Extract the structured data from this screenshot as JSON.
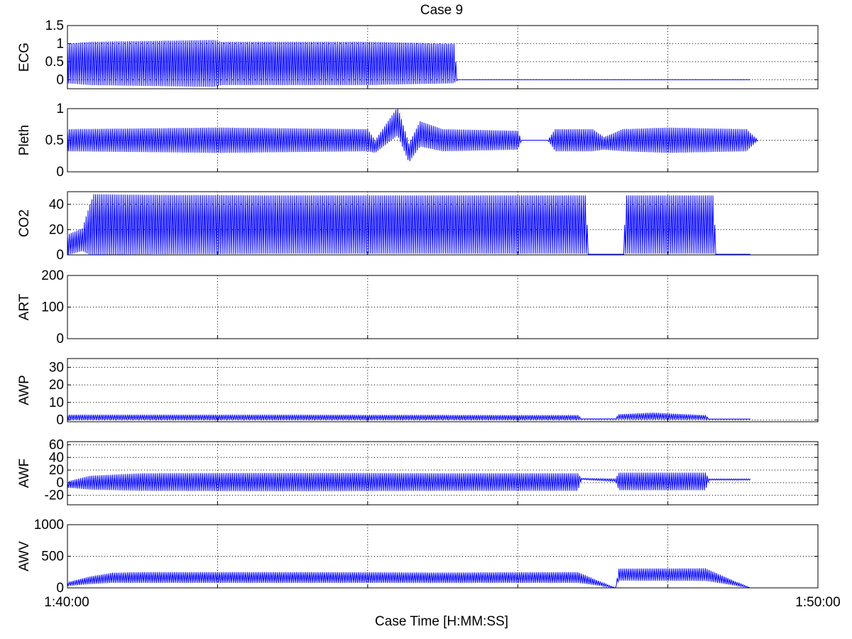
{
  "chart_data": {
    "type": "line",
    "title": "Case 9",
    "xlabel": "Case Time [H:MM:SS]",
    "xlim": [
      "1:40:00",
      "1:50:00"
    ],
    "x_tick_labels": [
      "1:40:00",
      "1:50:00"
    ],
    "x_grid_minutes": [
      0,
      2,
      4,
      6,
      8,
      10
    ],
    "grid": true,
    "line_color": "#0000ff",
    "panels": [
      {
        "ylabel": "ECG",
        "ylim": [
          -0.25,
          1.5
        ],
        "yticks": [
          0,
          0.5,
          1,
          1.5
        ],
        "ytick_labels": [
          "0",
          "0.5",
          "1",
          "1.5"
        ],
        "series": [
          {
            "x_min": [
              0,
              0.3,
              1.95,
              2.05,
              2.3,
              4,
              5.15,
              5.2,
              9.1
            ],
            "y": [
              0.45,
              0.45,
              0.45,
              0.45,
              0.45,
              0.45,
              0.45,
              0.0,
              0.0
            ],
            "osc_min": [
              1.1,
              1.2,
              1.3,
              1.2,
              1.2,
              1.2,
              1.1,
              0.0,
              0.0
            ]
          }
        ]
      },
      {
        "ylabel": "Pleth",
        "ylim": [
          0,
          1
        ],
        "yticks": [
          0,
          0.5,
          1
        ],
        "ytick_labels": [
          "0",
          "0.5",
          "1"
        ],
        "series": [
          {
            "x_min": [
              0,
              2,
              4,
              4.1,
              4.4,
              4.55,
              4.7,
              5,
              6,
              6.05,
              6.4,
              6.5,
              7,
              7.15,
              7.4,
              8,
              9.05,
              9.2
            ],
            "y": [
              0.5,
              0.5,
              0.5,
              0.4,
              0.8,
              0.3,
              0.6,
              0.5,
              0.5,
              0.5,
              0.5,
              0.5,
              0.5,
              0.45,
              0.5,
              0.5,
              0.5,
              0.5
            ],
            "osc_min": [
              0.35,
              0.4,
              0.35,
              0.2,
              0.45,
              0.3,
              0.4,
              0.35,
              0.3,
              0.0,
              0.0,
              0.35,
              0.35,
              0.2,
              0.35,
              0.4,
              0.35,
              0.0
            ]
          }
        ]
      },
      {
        "ylabel": "CO2",
        "ylim": [
          0,
          50
        ],
        "yticks": [
          0,
          20,
          40
        ],
        "ytick_labels": [
          "0",
          "20",
          "40"
        ],
        "series": [
          {
            "x_min": [
              0,
              0.2,
              0.3,
              0.35,
              1,
              3,
              5,
              6.9,
              6.95,
              7.4,
              7.45,
              8.6,
              8.65,
              9.1
            ],
            "y": [
              8,
              12,
              20,
              24,
              24,
              24,
              24,
              24,
              0.5,
              0.5,
              24,
              24,
              0.5,
              0.5
            ],
            "osc_min": [
              16,
              18,
              40,
              48,
              47,
              46,
              46,
              46,
              0,
              0,
              46,
              46,
              0,
              0
            ]
          }
        ]
      },
      {
        "ylabel": "ART",
        "ylim": [
          0,
          200
        ],
        "yticks": [
          0,
          100,
          200
        ],
        "ytick_labels": [
          "0",
          "100",
          "200"
        ],
        "series": []
      },
      {
        "ylabel": "AWP",
        "ylim": [
          -1,
          35
        ],
        "yticks": [
          0,
          10,
          20,
          30
        ],
        "ytick_labels": [
          "0",
          "10",
          "20",
          "30"
        ],
        "series": [
          {
            "x_min": [
              0,
              1,
              3,
              6,
              6.8,
              6.85,
              7.3,
              7.35,
              7.8,
              8.5,
              8.55,
              9.1
            ],
            "y": [
              1.5,
              1.5,
              1.5,
              1.4,
              1.4,
              0.6,
              0.6,
              1.8,
              2.2,
              1.5,
              0.5,
              0.5
            ],
            "osc_min": [
              3,
              3,
              3,
              2.8,
              2.8,
              0.3,
              0.3,
              3,
              4,
              2.5,
              0.2,
              0.2
            ]
          }
        ]
      },
      {
        "ylabel": "AWF",
        "ylim": [
          -35,
          65
        ],
        "yticks": [
          -20,
          0,
          20,
          40,
          60
        ],
        "ytick_labels": [
          "-20",
          "0",
          "20",
          "40",
          "60"
        ],
        "series": [
          {
            "x_min": [
              0,
              0.3,
              1,
              3,
              5,
              6.8,
              6.85,
              7.3,
              7.35,
              8.5,
              8.55,
              9.1
            ],
            "y": [
              -3,
              0,
              1,
              1,
              1,
              1,
              6,
              4,
              2,
              2,
              5,
              5
            ],
            "osc_min": [
              10,
              22,
              28,
              29,
              28,
              28,
              2,
              4,
              28,
              28,
              2,
              2
            ]
          }
        ]
      },
      {
        "ylabel": "AWV",
        "ylim": [
          0,
          1000
        ],
        "yticks": [
          0,
          500,
          1000
        ],
        "ytick_labels": [
          "0",
          "500",
          "1000"
        ],
        "series": [
          {
            "x_min": [
              0,
              0.3,
              0.6,
              1,
              3,
              5,
              6.8,
              7.3,
              7.35,
              8.5,
              9.1
            ],
            "y": [
              60,
              120,
              160,
              165,
              165,
              160,
              165,
              0,
              210,
              210,
              0
            ],
            "osc_min": [
              60,
              120,
              160,
              170,
              170,
              165,
              170,
              0,
              190,
              200,
              0
            ]
          }
        ]
      }
    ]
  }
}
